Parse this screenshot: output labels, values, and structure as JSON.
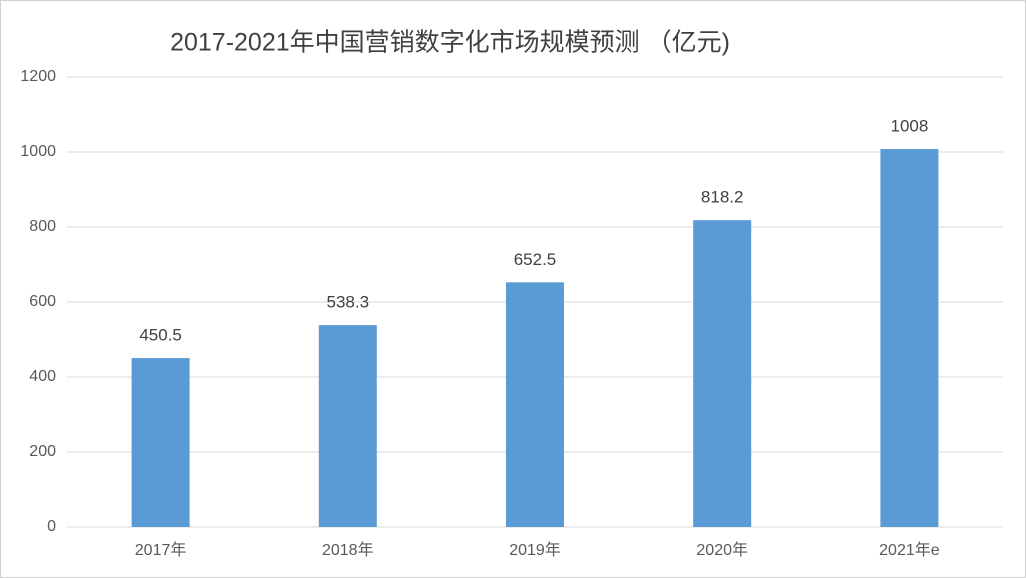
{
  "chart_data": {
    "type": "bar",
    "title": "2017-2021年中国营销数字化市场规模预测 （亿元)",
    "categories": [
      "2017年",
      "2018年",
      "2019年",
      "2020年",
      "2021年e"
    ],
    "values": [
      450.5,
      538.3,
      652.5,
      818.2,
      1008
    ],
    "color": "#5b9bd5",
    "ylim": [
      0,
      1200
    ],
    "yticks": [
      0,
      200,
      400,
      600,
      800,
      1000,
      1200
    ],
    "grid": true
  }
}
